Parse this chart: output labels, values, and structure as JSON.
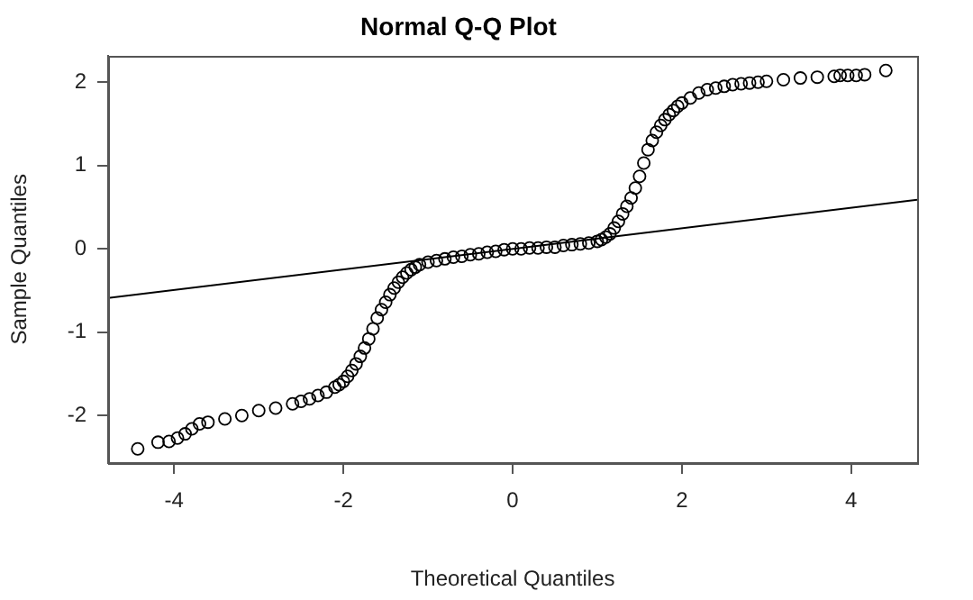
{
  "chart_data": {
    "type": "scatter",
    "title": "Normal Q-Q Plot",
    "xlabel": "Theoretical Quantiles",
    "ylabel": "Sample Quantiles",
    "xlim": [
      -4.78,
      4.78
    ],
    "ylim": [
      -2.57,
      2.32
    ],
    "xticks": [
      -4,
      -2,
      0,
      2,
      4
    ],
    "yticks": [
      -2,
      -1,
      0,
      1,
      2
    ],
    "series": [
      {
        "color": "#000000",
        "marker": "circle",
        "x": [
          -4.43,
          -4.19,
          -4.06,
          -3.96,
          -3.87,
          -3.79,
          -3.7,
          -3.6,
          -3.4,
          -3.2,
          -3.0,
          -2.8,
          -2.6,
          -2.5,
          -2.4,
          -2.3,
          -2.2,
          -2.1,
          -2.05,
          -2.0,
          -1.95,
          -1.9,
          -1.85,
          -1.8,
          -1.75,
          -1.7,
          -1.65,
          -1.6,
          -1.55,
          -1.5,
          -1.45,
          -1.4,
          -1.35,
          -1.3,
          -1.25,
          -1.2,
          -1.15,
          -1.1,
          -1.0,
          -0.9,
          -0.8,
          -0.7,
          -0.6,
          -0.5,
          -0.4,
          -0.3,
          -0.2,
          -0.1,
          0.0,
          0.1,
          0.2,
          0.3,
          0.4,
          0.5,
          0.6,
          0.7,
          0.8,
          0.9,
          1.0,
          1.05,
          1.1,
          1.15,
          1.2,
          1.25,
          1.3,
          1.35,
          1.4,
          1.45,
          1.5,
          1.55,
          1.6,
          1.65,
          1.7,
          1.75,
          1.8,
          1.85,
          1.9,
          1.95,
          2.0,
          2.1,
          2.2,
          2.3,
          2.4,
          2.5,
          2.6,
          2.7,
          2.8,
          2.9,
          3.0,
          3.2,
          3.4,
          3.6,
          3.8,
          3.87,
          3.96,
          4.06,
          4.16,
          4.41
        ],
        "values": [
          -2.4,
          -2.32,
          -2.31,
          -2.27,
          -2.22,
          -2.16,
          -2.1,
          -2.08,
          -2.04,
          -2.0,
          -1.94,
          -1.91,
          -1.86,
          -1.83,
          -1.8,
          -1.76,
          -1.72,
          -1.66,
          -1.63,
          -1.59,
          -1.53,
          -1.46,
          -1.38,
          -1.29,
          -1.19,
          -1.08,
          -0.96,
          -0.83,
          -0.73,
          -0.64,
          -0.55,
          -0.47,
          -0.4,
          -0.34,
          -0.29,
          -0.25,
          -0.22,
          -0.19,
          -0.16,
          -0.14,
          -0.12,
          -0.1,
          -0.09,
          -0.07,
          -0.06,
          -0.04,
          -0.03,
          -0.01,
          0.0,
          0.0,
          0.01,
          0.01,
          0.02,
          0.02,
          0.04,
          0.05,
          0.06,
          0.07,
          0.09,
          0.11,
          0.14,
          0.18,
          0.25,
          0.33,
          0.42,
          0.51,
          0.61,
          0.73,
          0.87,
          1.03,
          1.19,
          1.3,
          1.4,
          1.48,
          1.55,
          1.61,
          1.66,
          1.71,
          1.75,
          1.81,
          1.87,
          1.91,
          1.93,
          1.95,
          1.97,
          1.98,
          1.99,
          2.0,
          2.01,
          2.03,
          2.05,
          2.06,
          2.07,
          2.08,
          2.08,
          2.08,
          2.09,
          2.14
        ]
      },
      {
        "type": "line",
        "color": "#000000",
        "marker": "none",
        "x": [
          -4.78,
          4.78
        ],
        "values": [
          -0.59,
          0.59
        ]
      }
    ]
  }
}
